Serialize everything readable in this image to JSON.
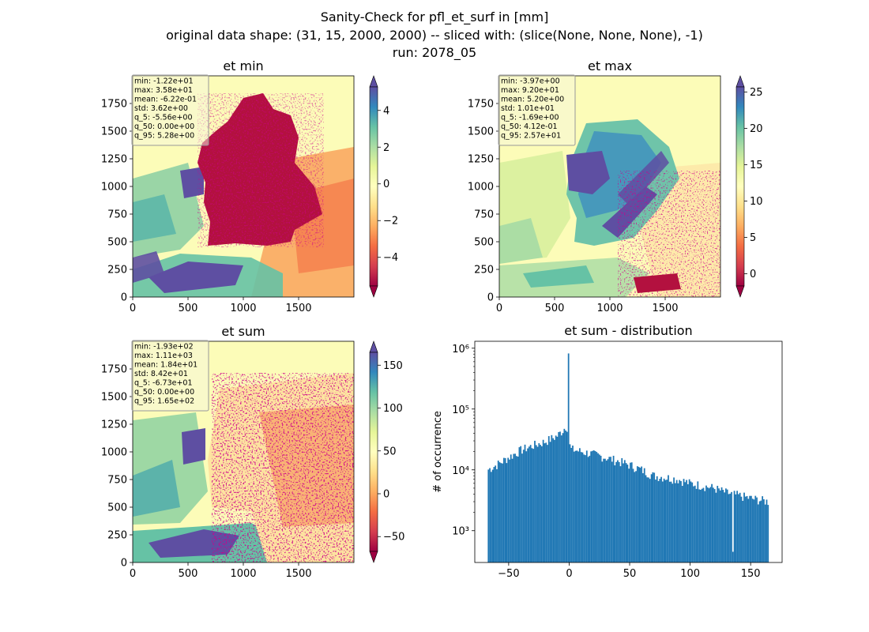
{
  "figure": {
    "title_lines": [
      "Sanity-Check for pfl_et_surf in [mm]",
      "original data shape: (31, 15, 2000, 2000) -- sliced with: (slice(None, None, None), -1)",
      "run: 2078_05"
    ]
  },
  "colors": {
    "colormap": "Spectral",
    "colormap_stops": [
      "#9e0142",
      "#d53e4f",
      "#f46d43",
      "#fdae61",
      "#fee08b",
      "#ffffbf",
      "#e6f598",
      "#abdda4",
      "#66c2a5",
      "#3288bd",
      "#5e4fa2"
    ],
    "histogram_bar": "#1f77b4",
    "stats_box_bg": "#f5f5dc"
  },
  "chart_data": [
    {
      "type": "heatmap",
      "title": "et min",
      "xlim": [
        0,
        2000
      ],
      "ylim": [
        0,
        2000
      ],
      "x_ticks": [
        "0",
        "500",
        "1000",
        "1500"
      ],
      "y_ticks": [
        "0",
        "250",
        "500",
        "750",
        "1000",
        "1250",
        "1500",
        "1750"
      ],
      "colorbar": {
        "min": -5.56,
        "max": 5.28,
        "ticks": [
          -4,
          -2,
          0,
          2,
          4
        ],
        "tick_labels": [
          "−4",
          "−2",
          "0",
          "2",
          "4"
        ],
        "extend": "both"
      },
      "stats": [
        "min: -1.22e+01",
        "max: 3.58e+01",
        "mean: -6.22e-01",
        "std: 3.62e+00",
        "q_5: -5.56e+00",
        "q_50: 0.00e+00",
        "q_95: 5.28e+00"
      ]
    },
    {
      "type": "heatmap",
      "title": "et max",
      "xlim": [
        0,
        2000
      ],
      "ylim": [
        0,
        2000
      ],
      "x_ticks": [
        "0",
        "500",
        "1000",
        "1500"
      ],
      "y_ticks": [
        "0",
        "250",
        "500",
        "750",
        "1000",
        "1250",
        "1500",
        "1750"
      ],
      "colorbar": {
        "min": -1.69,
        "max": 25.7,
        "ticks": [
          0,
          5,
          10,
          15,
          20,
          25
        ],
        "tick_labels": [
          "0",
          "5",
          "10",
          "15",
          "20",
          "25"
        ],
        "extend": "both"
      },
      "stats": [
        "min: -3.97e+00",
        "max: 9.20e+01",
        "mean: 5.20e+00",
        "std: 1.01e+01",
        "q_5: -1.69e+00",
        "q_50: 4.12e-01",
        "q_95: 2.57e+01"
      ]
    },
    {
      "type": "heatmap",
      "title": "et sum",
      "xlim": [
        0,
        2000
      ],
      "ylim": [
        0,
        2000
      ],
      "x_ticks": [
        "0",
        "500",
        "1000",
        "1500"
      ],
      "y_ticks": [
        "0",
        "250",
        "500",
        "750",
        "1000",
        "1250",
        "1500",
        "1750"
      ],
      "colorbar": {
        "min": -67.3,
        "max": 165,
        "ticks": [
          -50,
          0,
          50,
          100,
          150
        ],
        "tick_labels": [
          "−50",
          "0",
          "50",
          "100",
          "150"
        ],
        "extend": "both"
      },
      "stats": [
        "min: -1.93e+02",
        "max: 1.11e+03",
        "mean: 1.84e+01",
        "std: 8.42e+01",
        "q_5: -6.73e+01",
        "q_50: 0.00e+00",
        "q_95: 1.65e+02"
      ]
    },
    {
      "type": "bar",
      "title": "et sum - distribution",
      "xlabel": "",
      "ylabel": "# of occurrence",
      "yscale": "log",
      "xlim": [
        -78,
        176
      ],
      "ylim": [
        300,
        1300000
      ],
      "x_ticks": [
        -50,
        0,
        50,
        100,
        150
      ],
      "x_tick_labels": [
        "−50",
        "0",
        "50",
        "100",
        "150"
      ],
      "y_ticks": [
        1000,
        10000,
        100000,
        1000000
      ],
      "y_tick_labels": [
        "10³",
        "10⁴",
        "10⁵",
        "10⁶"
      ],
      "bin_range": [
        -67.3,
        165
      ],
      "bin_count": 200,
      "profile_points": [
        [
          -67.3,
          10000
        ],
        [
          -60,
          12000
        ],
        [
          -50,
          16000
        ],
        [
          -40,
          21000
        ],
        [
          -30,
          25000
        ],
        [
          -20,
          29000
        ],
        [
          -10,
          36000
        ],
        [
          -5,
          45000
        ],
        [
          -2,
          55000
        ],
        [
          -0.8,
          40000
        ],
        [
          1,
          22000
        ],
        [
          10,
          20000
        ],
        [
          20,
          18000
        ],
        [
          30,
          16000
        ],
        [
          40,
          14000
        ],
        [
          50,
          12000
        ],
        [
          60,
          10000
        ],
        [
          70,
          8000
        ],
        [
          80,
          7500
        ],
        [
          90,
          7000
        ],
        [
          100,
          6000
        ],
        [
          110,
          5500
        ],
        [
          120,
          5000
        ],
        [
          130,
          4200
        ],
        [
          140,
          3800
        ],
        [
          150,
          3400
        ],
        [
          165,
          3000
        ]
      ],
      "peak": {
        "x": 0,
        "count": 820000
      },
      "dip": {
        "x": 135,
        "count": 450
      }
    }
  ]
}
